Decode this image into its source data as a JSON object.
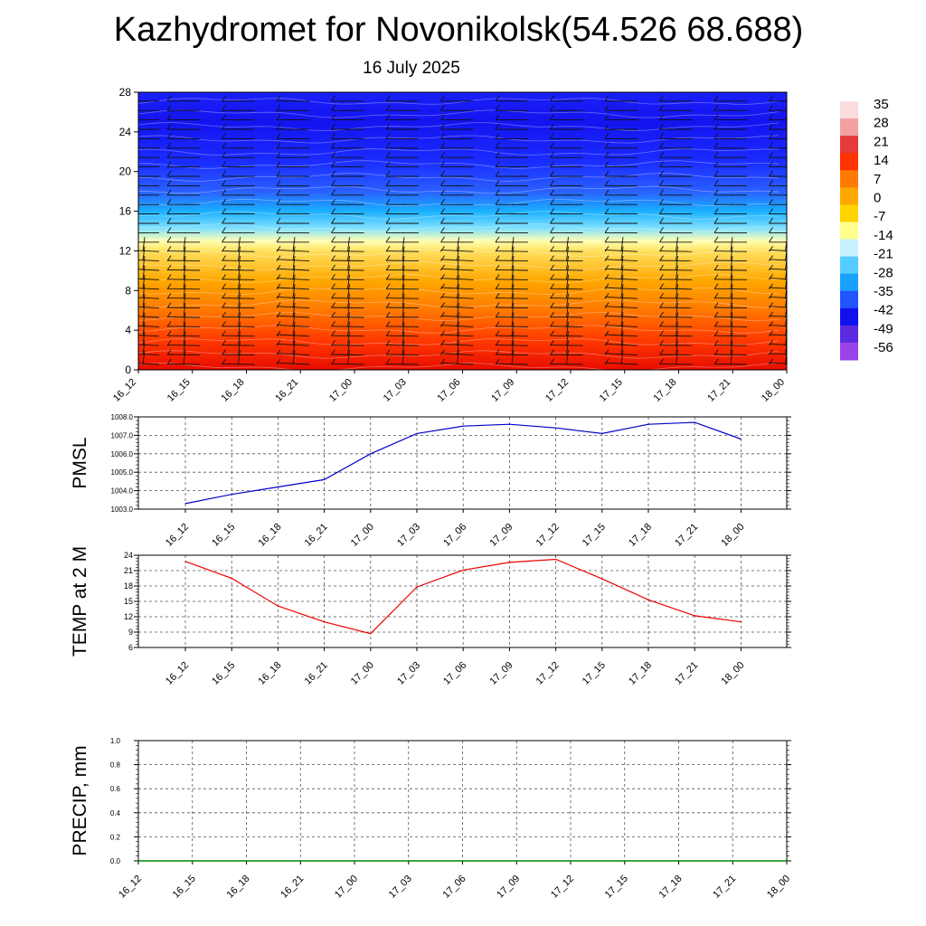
{
  "page": {
    "title": "Kazhydromet for Novonikolsk(54.526 68.688)",
    "subtitle": "16 July 2025"
  },
  "chart_data": [
    {
      "id": "cross-section",
      "type": "heatmap",
      "description_hint": "temperature colour field with wind barbs, levels 0-28",
      "x_ticks": [
        "16_12",
        "16_15",
        "16_18",
        "16_21",
        "17_00",
        "17_03",
        "17_06",
        "17_09",
        "17_12",
        "17_15",
        "17_18",
        "17_21",
        "18_00"
      ],
      "y_ticks": [
        "0",
        "4",
        "8",
        "12",
        "16",
        "20",
        "24",
        "28"
      ],
      "ylim": [
        0,
        28
      ],
      "colorbar": {
        "labels": [
          "35",
          "28",
          "21",
          "14",
          "7",
          "0",
          "-7",
          "-14",
          "-21",
          "-28",
          "-35",
          "-42",
          "-49",
          "-56"
        ],
        "colors": [
          "#fadcdc",
          "#f2a0a0",
          "#e43b3b",
          "#ff3300",
          "#ff7a00",
          "#ffa800",
          "#ffd400",
          "#ffff8c",
          "#c8f0ff",
          "#55ccff",
          "#1aa0ff",
          "#2255ff",
          "#1111ee",
          "#5a2be0",
          "#9a44e8"
        ]
      },
      "bands": [
        {
          "y": 0,
          "color": "#e80c00"
        },
        {
          "y": 3,
          "color": "#ff3a00"
        },
        {
          "y": 6,
          "color": "#ff7800"
        },
        {
          "y": 9,
          "color": "#ffa800"
        },
        {
          "y": 12,
          "color": "#ffe060"
        },
        {
          "y": 13,
          "color": "#ffffb0"
        },
        {
          "y": 14.3,
          "color": "#7fe0ff"
        },
        {
          "y": 16,
          "color": "#1ab0ff"
        },
        {
          "y": 18,
          "color": "#2a60ff"
        },
        {
          "y": 21,
          "color": "#1a2cff"
        },
        {
          "y": 25,
          "color": "#1414f0"
        },
        {
          "y": 28,
          "color": "#1a20f8"
        }
      ]
    },
    {
      "id": "pmsl",
      "type": "line",
      "ylabel": "PMSL",
      "categories": [
        "16_12",
        "16_15",
        "16_18",
        "16_21",
        "17_00",
        "17_03",
        "17_06",
        "17_09",
        "17_12",
        "17_15",
        "17_18",
        "17_21",
        "18_00"
      ],
      "y_ticks": [
        "1003.0",
        "1004.0",
        "1005.0",
        "1006.0",
        "1007.0",
        "1008.0"
      ],
      "ylim": [
        1003,
        1008
      ],
      "series": [
        {
          "values": [
            1003.3,
            1003.8,
            1004.2,
            1004.6,
            1006.0,
            1007.1,
            1007.5,
            1007.6,
            1007.4,
            1007.1,
            1007.6,
            1007.7,
            1006.8
          ],
          "color": "#0000cc"
        }
      ]
    },
    {
      "id": "temp2m",
      "type": "line",
      "ylabel": "TEMP at 2 M",
      "categories": [
        "16_12",
        "16_15",
        "16_18",
        "16_21",
        "17_00",
        "17_03",
        "17_06",
        "17_09",
        "17_12",
        "17_15",
        "17_18",
        "17_21",
        "18_00"
      ],
      "y_ticks": [
        "6",
        "9",
        "12",
        "15",
        "18",
        "21",
        "24"
      ],
      "ylim": [
        6,
        24
      ],
      "series": [
        {
          "values": [
            22.8,
            19.5,
            14.1,
            11.0,
            8.7,
            17.8,
            21.1,
            22.6,
            23.2,
            19.4,
            15.3,
            12.2,
            11.0
          ],
          "color": "#ee0000"
        }
      ]
    },
    {
      "id": "precip",
      "type": "line",
      "ylabel": "PRECIP, mm",
      "categories": [
        "16_12",
        "16_15",
        "16_18",
        "16_21",
        "17_00",
        "17_03",
        "17_06",
        "17_09",
        "17_12",
        "17_15",
        "17_18",
        "17_21",
        "18_00"
      ],
      "y_ticks": [
        "0.0",
        "0.2",
        "0.4",
        "0.6",
        "0.8",
        "1.0"
      ],
      "ylim": [
        0,
        1
      ],
      "series": [
        {
          "values": [
            0,
            0,
            0,
            0,
            0,
            0,
            0,
            0,
            0,
            0,
            0,
            0,
            0
          ],
          "color": "#008800"
        }
      ]
    }
  ]
}
